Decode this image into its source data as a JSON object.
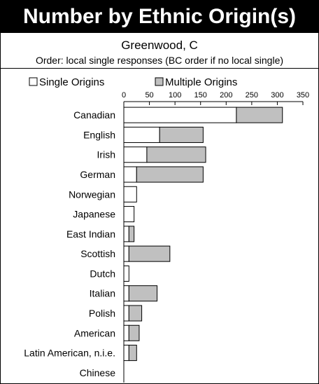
{
  "header": {
    "title": "Number by Ethnic Origin(s)",
    "subtitle": "Greenwood, C",
    "order_note": "Order: local single responses (BC order if no local single)"
  },
  "colors": {
    "title_bg": "#000000",
    "single_fill": "#ffffff",
    "multiple_fill": "#c0c0c0",
    "stroke": "#000000"
  },
  "chart_data": {
    "type": "bar",
    "orientation": "horizontal",
    "stacked": true,
    "categories": [
      "Canadian",
      "English",
      "Irish",
      "German",
      "Norwegian",
      "Japanese",
      "East Indian",
      "Scottish",
      "Dutch",
      "Italian",
      "Polish",
      "American",
      "Latin American, n.i.e.",
      "Chinese"
    ],
    "series": [
      {
        "name": "Single Origins",
        "values": [
          220,
          70,
          45,
          25,
          25,
          20,
          10,
          10,
          10,
          10,
          10,
          10,
          10,
          0
        ]
      },
      {
        "name": "Multiple Origins",
        "values": [
          90,
          85,
          115,
          130,
          0,
          0,
          10,
          80,
          0,
          55,
          25,
          20,
          15,
          0
        ]
      }
    ],
    "xlim": [
      0,
      350
    ],
    "xticks": [
      "0",
      "50",
      "100",
      "150",
      "200",
      "250",
      "300",
      "350"
    ],
    "legend_position": "top"
  }
}
